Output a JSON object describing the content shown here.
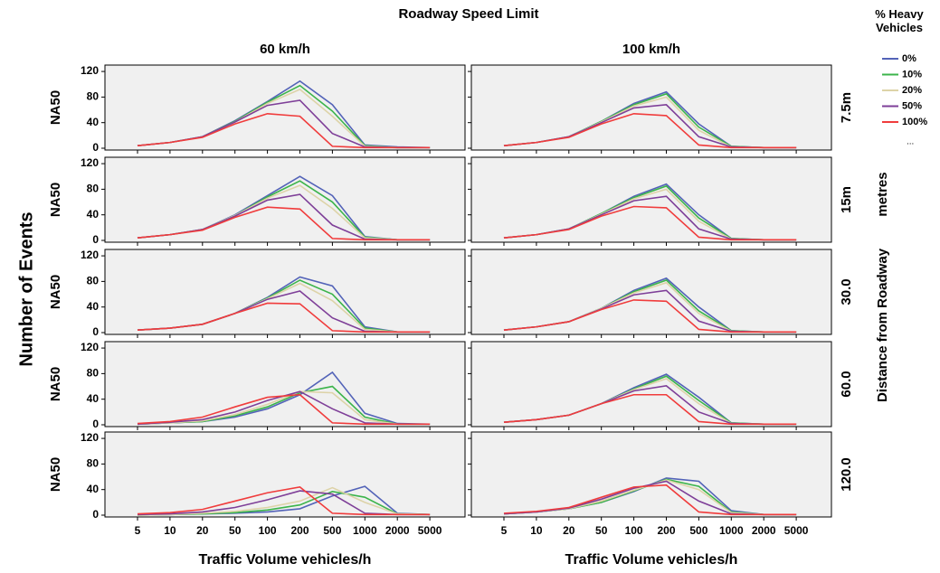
{
  "chart_data": {
    "type": "line",
    "title": "Roadway Speed Limit",
    "columns": [
      "60 km/h",
      "100 km/h"
    ],
    "rows": [
      "7.5m",
      "15m",
      "30.0",
      "60.0",
      "120.0"
    ],
    "row_axis_label": "Distance from Roadway",
    "row_axis_unit": "metres",
    "y_label": "Number of Events",
    "panel_y_label": "NA50",
    "x_label": "Traffic Volume vehicles/h",
    "legend_title": "% Heavy Vehicles",
    "legend_more": "...",
    "categories": [
      "5",
      "10",
      "20",
      "50",
      "100",
      "200",
      "500",
      "1000",
      "2000",
      "5000"
    ],
    "ylim": [
      0,
      130
    ],
    "yticks": [
      0,
      40,
      80,
      120
    ],
    "series": [
      {
        "name": "0%",
        "color": "#5363b8"
      },
      {
        "name": "10%",
        "color": "#3cb44b"
      },
      {
        "name": "20%",
        "color": "#ddd3a8"
      },
      {
        "name": "50%",
        "color": "#7e3f98"
      },
      {
        "name": "100%",
        "color": "#f03c3c"
      }
    ],
    "panels": [
      [
        {
          "series": [
            {
              "values": [
                4,
                9,
                18,
                43,
                73,
                105,
                68,
                5,
                2,
                1
              ]
            },
            {
              "values": [
                4,
                9,
                18,
                42,
                72,
                98,
                58,
                4,
                1,
                1
              ]
            },
            {
              "values": [
                4,
                9,
                18,
                41,
                70,
                92,
                50,
                3,
                1,
                1
              ]
            },
            {
              "values": [
                4,
                9,
                18,
                41,
                67,
                75,
                23,
                2,
                1,
                1
              ]
            },
            {
              "values": [
                4,
                9,
                17,
                38,
                54,
                50,
                3,
                1,
                1,
                1
              ]
            }
          ]
        },
        {
          "series": [
            {
              "values": [
                4,
                9,
                18,
                42,
                70,
                88,
                38,
                3,
                1,
                1
              ]
            },
            {
              "values": [
                4,
                9,
                18,
                42,
                68,
                85,
                33,
                3,
                1,
                1
              ]
            },
            {
              "values": [
                4,
                9,
                18,
                41,
                66,
                80,
                28,
                2,
                1,
                1
              ]
            },
            {
              "values": [
                4,
                9,
                18,
                40,
                63,
                68,
                18,
                2,
                1,
                1
              ]
            },
            {
              "values": [
                4,
                9,
                17,
                38,
                54,
                51,
                5,
                1,
                1,
                1
              ]
            }
          ]
        }
      ],
      [
        {
          "series": [
            {
              "values": [
                4,
                9,
                17,
                40,
                70,
                100,
                70,
                6,
                1,
                1
              ]
            },
            {
              "values": [
                4,
                9,
                17,
                39,
                68,
                93,
                60,
                5,
                1,
                1
              ]
            },
            {
              "values": [
                4,
                9,
                17,
                39,
                66,
                86,
                50,
                4,
                1,
                1
              ]
            },
            {
              "values": [
                4,
                9,
                17,
                38,
                63,
                72,
                24,
                2,
                1,
                1
              ]
            },
            {
              "values": [
                4,
                9,
                16,
                36,
                52,
                49,
                3,
                1,
                1,
                1
              ]
            }
          ]
        },
        {
          "series": [
            {
              "values": [
                4,
                9,
                18,
                42,
                69,
                88,
                40,
                3,
                1,
                1
              ]
            },
            {
              "values": [
                4,
                9,
                18,
                42,
                67,
                85,
                35,
                3,
                1,
                1
              ]
            },
            {
              "values": [
                4,
                9,
                18,
                41,
                65,
                80,
                30,
                2,
                1,
                1
              ]
            },
            {
              "values": [
                4,
                9,
                18,
                40,
                62,
                69,
                18,
                2,
                1,
                1
              ]
            },
            {
              "values": [
                4,
                9,
                17,
                38,
                53,
                51,
                5,
                1,
                1,
                1
              ]
            }
          ]
        }
      ],
      [
        {
          "series": [
            {
              "values": [
                4,
                7,
                13,
                30,
                55,
                87,
                73,
                9,
                1,
                1
              ]
            },
            {
              "values": [
                4,
                7,
                13,
                30,
                54,
                82,
                60,
                7,
                1,
                1
              ]
            },
            {
              "values": [
                4,
                7,
                13,
                30,
                53,
                77,
                50,
                5,
                1,
                1
              ]
            },
            {
              "values": [
                4,
                7,
                13,
                30,
                52,
                65,
                23,
                2,
                1,
                1
              ]
            },
            {
              "values": [
                4,
                7,
                13,
                30,
                46,
                45,
                3,
                1,
                1,
                1
              ]
            }
          ]
        },
        {
          "series": [
            {
              "values": [
                4,
                9,
                17,
                38,
                66,
                85,
                40,
                3,
                1,
                1
              ]
            },
            {
              "values": [
                4,
                9,
                17,
                38,
                64,
                82,
                34,
                3,
                1,
                1
              ]
            },
            {
              "values": [
                4,
                9,
                17,
                38,
                62,
                78,
                30,
                2,
                1,
                1
              ]
            },
            {
              "values": [
                4,
                9,
                17,
                37,
                59,
                66,
                18,
                2,
                1,
                1
              ]
            },
            {
              "values": [
                4,
                9,
                17,
                36,
                51,
                49,
                5,
                1,
                1,
                1
              ]
            }
          ]
        }
      ],
      [
        {
          "series": [
            {
              "values": [
                1,
                3,
                5,
                12,
                25,
                47,
                82,
                18,
                2,
                1
              ]
            },
            {
              "values": [
                1,
                3,
                5,
                14,
                28,
                50,
                60,
                12,
                1,
                1
              ]
            },
            {
              "values": [
                1,
                3,
                6,
                16,
                32,
                52,
                50,
                8,
                1,
                1
              ]
            },
            {
              "values": [
                1,
                4,
                8,
                20,
                38,
                52,
                25,
                3,
                1,
                1
              ]
            },
            {
              "values": [
                2,
                5,
                12,
                28,
                43,
                47,
                3,
                1,
                1,
                1
              ]
            }
          ]
        },
        {
          "series": [
            {
              "values": [
                4,
                8,
                15,
                33,
                58,
                79,
                43,
                3,
                1,
                1
              ]
            },
            {
              "values": [
                4,
                8,
                15,
                33,
                56,
                76,
                38,
                3,
                1,
                1
              ]
            },
            {
              "values": [
                4,
                8,
                15,
                33,
                55,
                72,
                33,
                2,
                1,
                1
              ]
            },
            {
              "values": [
                4,
                8,
                15,
                33,
                53,
                61,
                20,
                2,
                1,
                1
              ]
            },
            {
              "values": [
                4,
                8,
                15,
                33,
                47,
                47,
                5,
                1,
                1,
                1
              ]
            }
          ]
        }
      ],
      [
        {
          "series": [
            {
              "values": [
                0,
                1,
                2,
                3,
                5,
                10,
                30,
                45,
                3,
                1
              ]
            },
            {
              "values": [
                0,
                1,
                2,
                4,
                8,
                16,
                37,
                28,
                2,
                1
              ]
            },
            {
              "values": [
                0,
                1,
                3,
                6,
                12,
                22,
                43,
                20,
                2,
                1
              ]
            },
            {
              "values": [
                1,
                2,
                5,
                12,
                24,
                38,
                33,
                3,
                1,
                1
              ]
            },
            {
              "values": [
                2,
                4,
                9,
                22,
                35,
                44,
                3,
                1,
                1,
                1
              ]
            }
          ]
        },
        {
          "series": [
            {
              "values": [
                2,
                5,
                10,
                20,
                37,
                58,
                53,
                7,
                1,
                1
              ]
            },
            {
              "values": [
                2,
                5,
                10,
                20,
                38,
                56,
                45,
                5,
                1,
                1
              ]
            },
            {
              "values": [
                2,
                5,
                10,
                22,
                39,
                55,
                40,
                4,
                1,
                1
              ]
            },
            {
              "values": [
                2,
                5,
                11,
                25,
                42,
                53,
                22,
                2,
                1,
                1
              ]
            },
            {
              "values": [
                3,
                6,
                12,
                28,
                44,
                47,
                5,
                1,
                1,
                1
              ]
            }
          ]
        }
      ]
    ]
  }
}
